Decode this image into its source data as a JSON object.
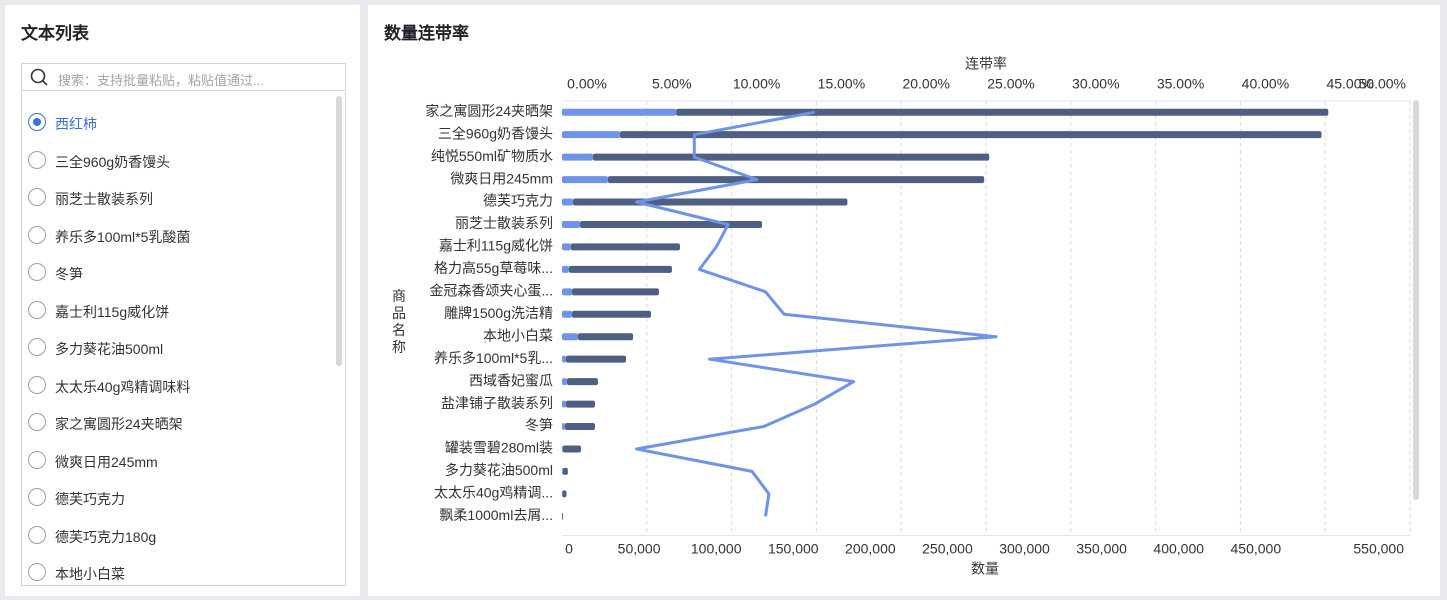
{
  "left_panel": {
    "title": "文本列表",
    "search_placeholder": "搜索：支持批量粘贴，粘贴值通过...",
    "items": [
      "西红柿",
      "三全960g奶香馒头",
      "丽芝士散装系列",
      "养乐多100ml*5乳酸菌",
      "冬笋",
      "嘉士利115g威化饼",
      "多力葵花油500ml",
      "太太乐40g鸡精调味料",
      "家之寓圆形24夹晒架",
      "微爽日用245mm",
      "德芙巧克力",
      "德芙巧克力180g",
      "本地小白菜"
    ],
    "selected": 0
  },
  "chart_data": {
    "type": "bar",
    "orientation": "horizontal",
    "stacked": true,
    "title": "数量连带率",
    "y_label": "商品名称",
    "x_label": "数量",
    "x2_label": "连带率",
    "categories": [
      "家之寓圆形24夹晒架",
      "三全960g奶香馒头",
      "纯悦550ml矿物质水",
      "微爽日用245mm",
      "德芙巧克力",
      "丽芝士散装系列",
      "嘉士利115g威化饼",
      "格力高55g草莓味...",
      "金冠森香颂夹心蛋...",
      "雕牌1500g洗洁精",
      "本地小白菜",
      "养乐多100ml*5乳...",
      "西域香妃蜜瓜",
      "盐津铺子散装系列",
      "冬笋",
      "罐装雪碧280ml装",
      "多力葵花油500ml",
      "太太乐40g鸡精调...",
      "飘柔1000ml去屑..."
    ],
    "series": [
      {
        "color": "#6f93e8",
        "values": [
          74000,
          37600,
          20100,
          29800,
          7100,
          11700,
          5800,
          4500,
          6500,
          6500,
          10400,
          2600,
          3200,
          2600,
          1900,
          600,
          600,
          300,
          0
        ]
      },
      {
        "color": "#4e5f82",
        "values": [
          423000,
          455000,
          257000,
          244000,
          178000,
          118000,
          70700,
          66800,
          56400,
          51200,
          35700,
          38900,
          20100,
          18800,
          19500,
          11700,
          3200,
          2600,
          600
        ]
      },
      {
        "type": "line",
        "axis": "x2",
        "color": "#6f93e8",
        "values": [
          14.9,
          7.8,
          7.8,
          11.5,
          4.4,
          9.8,
          9.1,
          8.1,
          12.0,
          13.1,
          25.6,
          8.7,
          17.2,
          14.9,
          11.9,
          4.4,
          11.2,
          12.2,
          12.0
        ]
      }
    ],
    "xlim": [
      0,
      550000
    ],
    "xticks": [
      0,
      {
        "value": 50000,
        "label": "50,000"
      },
      {
        "value": 100000,
        "label": "100,000"
      },
      {
        "value": 150000,
        "label": "150,000"
      },
      {
        "value": 200000,
        "label": "200,000"
      },
      {
        "value": 250000,
        "label": "250,000"
      },
      {
        "value": 300000,
        "label": "300,000"
      },
      {
        "value": 350000,
        "label": "350,000"
      },
      {
        "value": 400000,
        "label": "400,000"
      },
      {
        "value": 450000,
        "label": "450,000"
      },
      {
        "value": 550000,
        "label": "550,000"
      }
    ],
    "x2lim": [
      0,
      50
    ],
    "x2ticks": [
      {
        "value": 0,
        "label": "0.00%"
      },
      {
        "value": 5,
        "label": "5.00%"
      },
      {
        "value": 10,
        "label": "10.00%"
      },
      {
        "value": 15,
        "label": "15.00%"
      },
      {
        "value": 20,
        "label": "20.00%"
      },
      {
        "value": 25,
        "label": "25.00%"
      },
      {
        "value": 30,
        "label": "30.00%"
      },
      {
        "value": 35,
        "label": "35.00%"
      },
      {
        "value": 40,
        "label": "40.00%"
      },
      {
        "value": 45,
        "label": "45.00%"
      },
      {
        "value": 50,
        "label": "50.00%"
      }
    ],
    "grid": true
  }
}
